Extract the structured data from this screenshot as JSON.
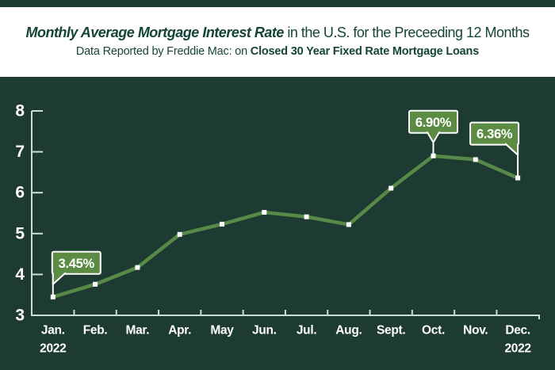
{
  "header": {
    "title_emphasis": "Monthly Average Mortgage Interest Rate",
    "title_rest": " in the U.S. for the Preceeding 12 Months",
    "subtitle_prefix": "Data Reported by Freddie Mac: on ",
    "subtitle_bold": "Closed 30 Year Fixed Rate Mortgage Loans"
  },
  "colors": {
    "background": "#1d3b33",
    "header_bg": "#ffffff",
    "header_text": "#154439",
    "line": "#578a47",
    "callout_fill": "#5c8c43",
    "callout_border": "#ffffff",
    "axis": "#cbded5",
    "label_text": "#ffffff",
    "marker": "#ffffff"
  },
  "chart_data": {
    "type": "line",
    "title": "Monthly Average Mortgage Interest Rate in the U.S. for the Preceeding 12 Months",
    "subtitle": "Data Reported by Freddie Mac: on Closed 30 Year Fixed Rate Mortgage Loans",
    "categories": [
      "Jan.",
      "Feb.",
      "Mar.",
      "Apr.",
      "May",
      "Jun.",
      "Jul.",
      "Aug.",
      "Sept.",
      "Oct.",
      "Nov.",
      "Dec."
    ],
    "values": [
      3.45,
      3.76,
      4.17,
      4.98,
      5.23,
      5.52,
      5.41,
      5.22,
      6.11,
      6.9,
      6.81,
      6.36
    ],
    "x_year_labels": [
      {
        "index": 0,
        "label": "2022"
      },
      {
        "index": 11,
        "label": "2022"
      }
    ],
    "ylim": [
      3,
      8
    ],
    "yticks": [
      "3",
      "4",
      "5",
      "6",
      "7",
      "8"
    ],
    "grid": false,
    "legend": false,
    "callouts": [
      {
        "index": 0,
        "label": "3.45%",
        "anchor": "left"
      },
      {
        "index": 9,
        "label": "6.90%",
        "anchor": "center"
      },
      {
        "index": 11,
        "label": "6.36%",
        "anchor": "right"
      }
    ]
  }
}
